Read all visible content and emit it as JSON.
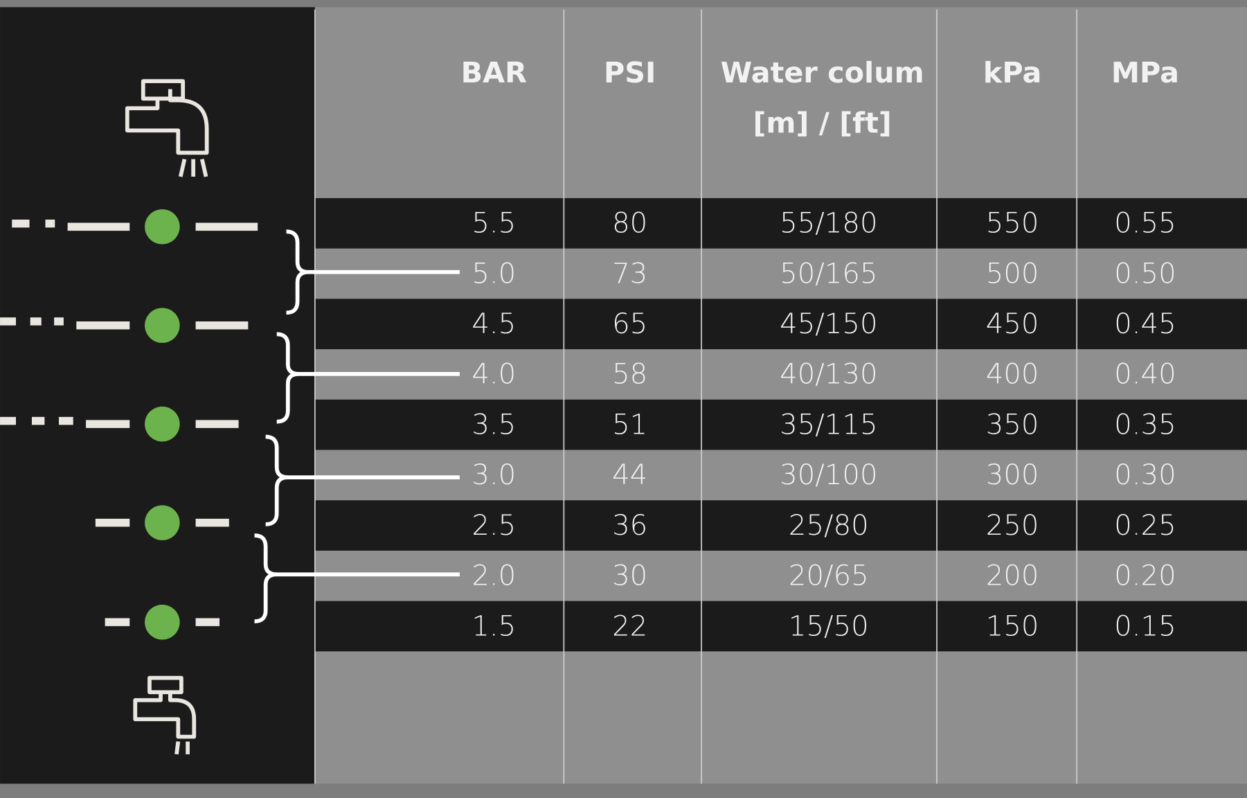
{
  "table": {
    "headers": [
      [
        "BAR"
      ],
      [
        "PSI"
      ],
      [
        "Water colum",
        "[m] / [ft]"
      ],
      [
        "kPa"
      ],
      [
        "MPa"
      ]
    ],
    "rows": [
      [
        "5.5",
        "80",
        "55/180",
        "550",
        "0.55"
      ],
      [
        "5.0",
        "73",
        "50/165",
        "500",
        "0.50"
      ],
      [
        "4.5",
        "65",
        "45/150",
        "450",
        "0.45"
      ],
      [
        "4.0",
        "58",
        "40/130",
        "400",
        "0.40"
      ],
      [
        "3.5",
        "51",
        "35/115",
        "350",
        "0.35"
      ],
      [
        "3.0",
        "44",
        "30/100",
        "300",
        "0.30"
      ],
      [
        "2.5",
        "36",
        "25/80",
        "250",
        "0.25"
      ],
      [
        "2.0",
        "30",
        "20/65",
        "200",
        "0.20"
      ],
      [
        "1.5",
        "22",
        "15/50",
        "150",
        "0.15"
      ]
    ]
  }
}
